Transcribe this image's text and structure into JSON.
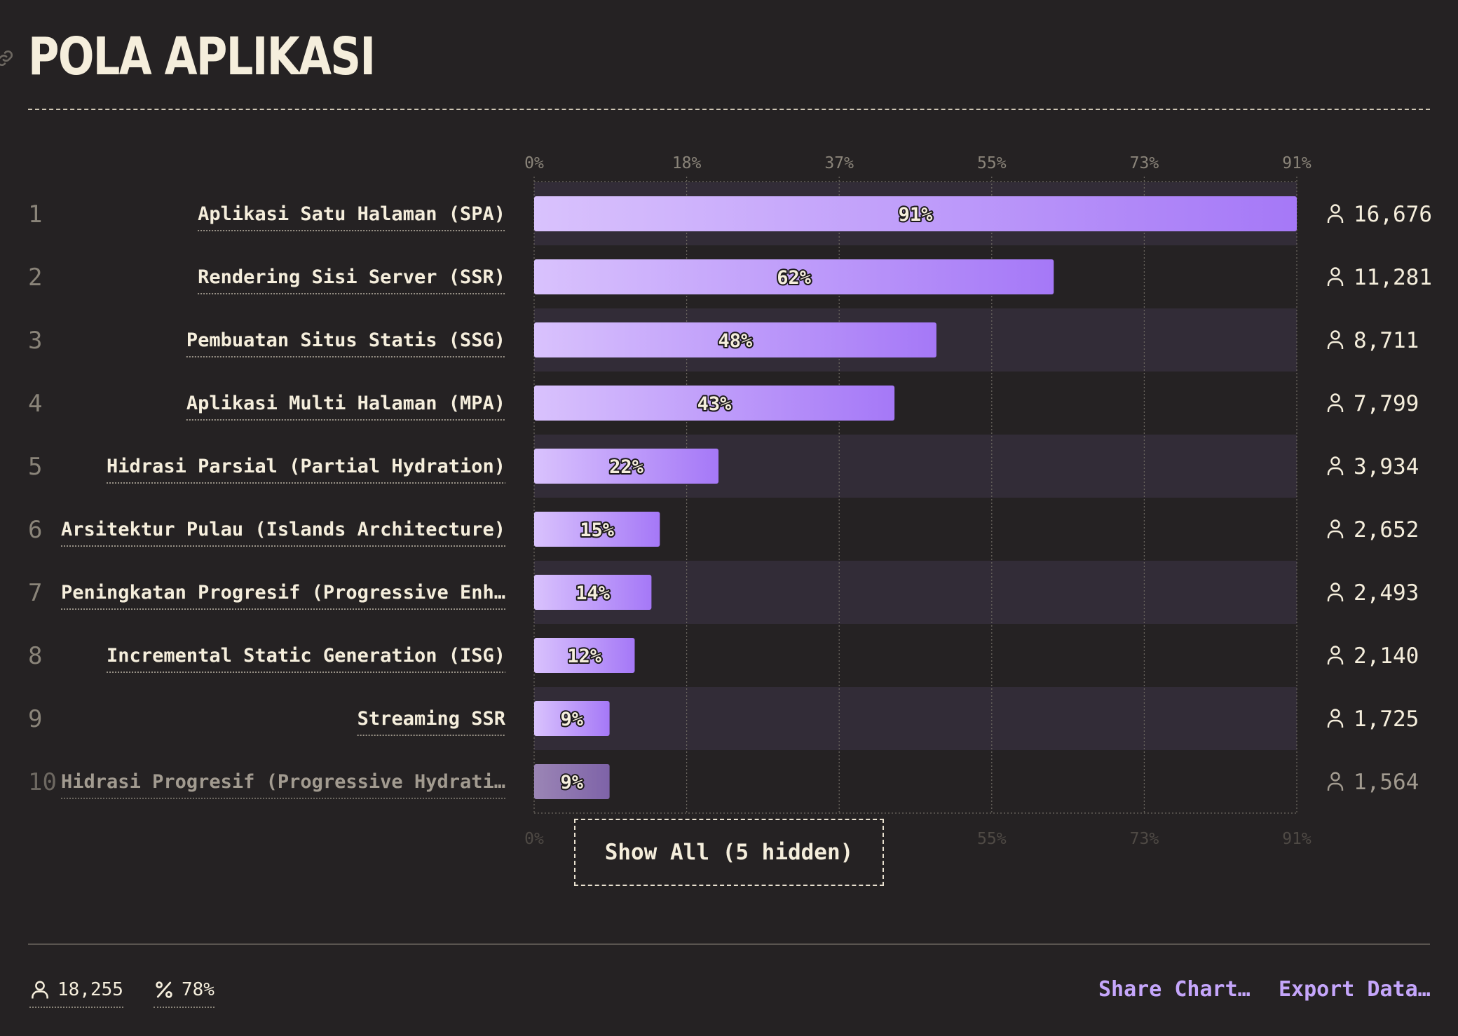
{
  "header": {
    "title": "POLA APLIKASI"
  },
  "colors": {
    "background": "#252223",
    "bar_start": "#d9c2fd",
    "bar_end": "#a578f7",
    "accent_link": "#c5a6fb"
  },
  "icons": {
    "link": "link-icon",
    "respondents": "user-icon",
    "percent": "percent-icon"
  },
  "chart_data": {
    "type": "bar",
    "orientation": "horizontal",
    "title": "POLA APLIKASI",
    "xlim": [
      0,
      91
    ],
    "x_ticks": [
      "0%",
      "18%",
      "37%",
      "55%",
      "73%",
      "91%"
    ],
    "grid": true,
    "categories": [
      "Aplikasi Satu Halaman (SPA)",
      "Rendering Sisi Server (SSR)",
      "Pembuatan Situs Statis (SSG)",
      "Aplikasi Multi Halaman (MPA)",
      "Hidrasi Parsial (Partial Hydration)",
      "Arsitektur Pulau (Islands Architecture)",
      "Peningkatan Progresif (Progressive Enh…",
      "Incremental Static Generation (ISG)",
      "Streaming SSR",
      "Hidrasi Progresif (Progressive Hydrati…"
    ],
    "values": [
      91,
      62,
      48,
      43,
      22,
      15,
      14,
      12,
      9,
      9
    ],
    "value_labels": [
      "91%",
      "62%",
      "48%",
      "43%",
      "22%",
      "15%",
      "14%",
      "12%",
      "9%",
      "9%"
    ],
    "counts": [
      "16,676",
      "11,281",
      "8,711",
      "7,799",
      "3,934",
      "2,652",
      "2,493",
      "2,140",
      "1,725",
      "1,564"
    ],
    "ranks": [
      "1",
      "2",
      "3",
      "4",
      "5",
      "6",
      "7",
      "8",
      "9",
      "10"
    ]
  },
  "chart_controls": {
    "show_all_label": "Show All (5 hidden)"
  },
  "footer": {
    "total_respondents": "18,255",
    "percent_answered": "78%",
    "share_label": "Share Chart…",
    "export_label": "Export Data…"
  }
}
